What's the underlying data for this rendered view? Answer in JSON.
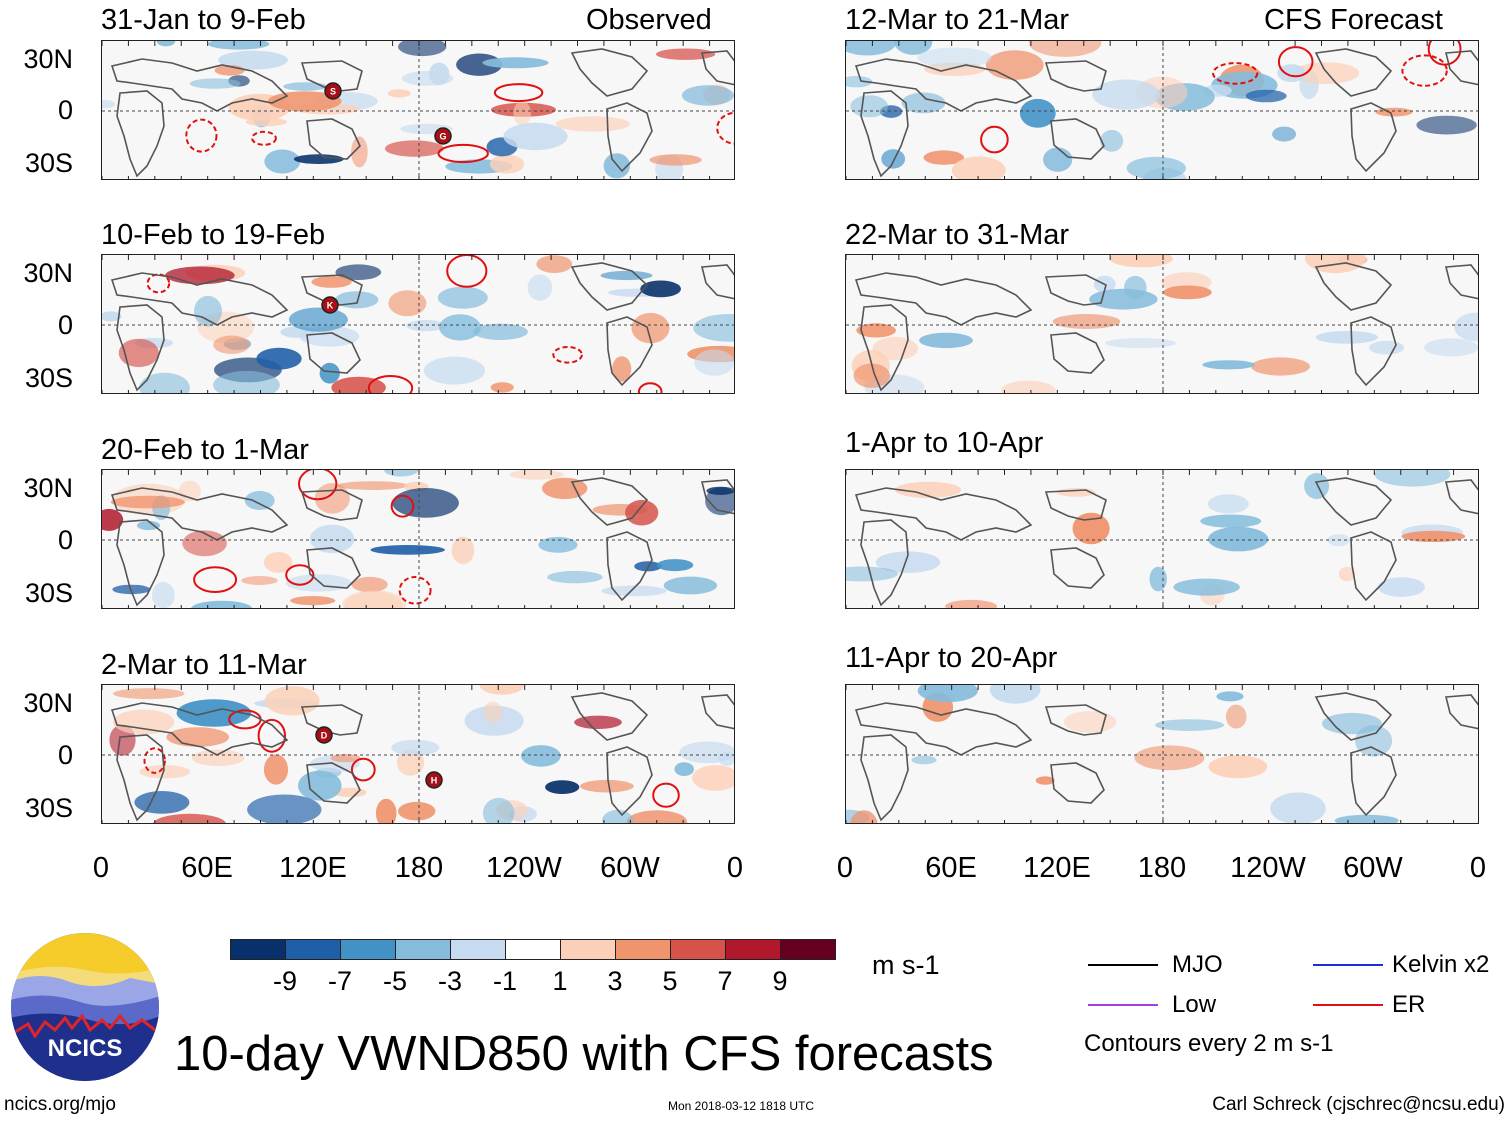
{
  "titles": {
    "observed": "Observed",
    "forecast": "CFS Forecast",
    "main": "10-day VWND850 with CFS forecasts"
  },
  "panels_left": [
    {
      "period": "31-Jan to 9-Feb",
      "storms": [
        "S",
        "G"
      ]
    },
    {
      "period": "10-Feb to 19-Feb",
      "storms": [
        "K"
      ]
    },
    {
      "period": "20-Feb to 1-Mar",
      "storms": []
    },
    {
      "period": "2-Mar to 11-Mar",
      "storms": [
        "D",
        "H"
      ]
    }
  ],
  "panels_right": [
    {
      "period": "12-Mar to 21-Mar"
    },
    {
      "period": "22-Mar to 31-Mar"
    },
    {
      "period": "1-Apr to 10-Apr"
    },
    {
      "period": "11-Apr to 20-Apr"
    }
  ],
  "lat_labels": [
    "30N",
    "0",
    "30S"
  ],
  "lon_labels": [
    "0",
    "60E",
    "120E",
    "180",
    "120W",
    "60W",
    "0"
  ],
  "colorbar": {
    "labels": [
      "-9",
      "-7",
      "-5",
      "-3",
      "-1",
      "1",
      "3",
      "5",
      "7",
      "9"
    ],
    "colors": [
      "#08306b",
      "#1f5fa8",
      "#4292c6",
      "#85bcdc",
      "#c6dbef",
      "#ffffff",
      "#fcd0b8",
      "#f0946e",
      "#d6534b",
      "#b2182b",
      "#67001f"
    ],
    "units": "m s-1"
  },
  "legend": {
    "items": [
      {
        "label": "MJO",
        "color": "#000000"
      },
      {
        "label": "Kelvin x2",
        "color": "#1a2fd6"
      },
      {
        "label": "Low",
        "color": "#a63ee8"
      },
      {
        "label": "ER",
        "color": "#e01010"
      }
    ],
    "contours": "Contours every 2 m s-1"
  },
  "logo_text": "NCICS",
  "footer": {
    "left": "ncics.org/mjo",
    "center": "Mon 2018-03-12 1818 UTC",
    "right": "Carl Schreck (cjschrec@ncsu.edu)"
  }
}
